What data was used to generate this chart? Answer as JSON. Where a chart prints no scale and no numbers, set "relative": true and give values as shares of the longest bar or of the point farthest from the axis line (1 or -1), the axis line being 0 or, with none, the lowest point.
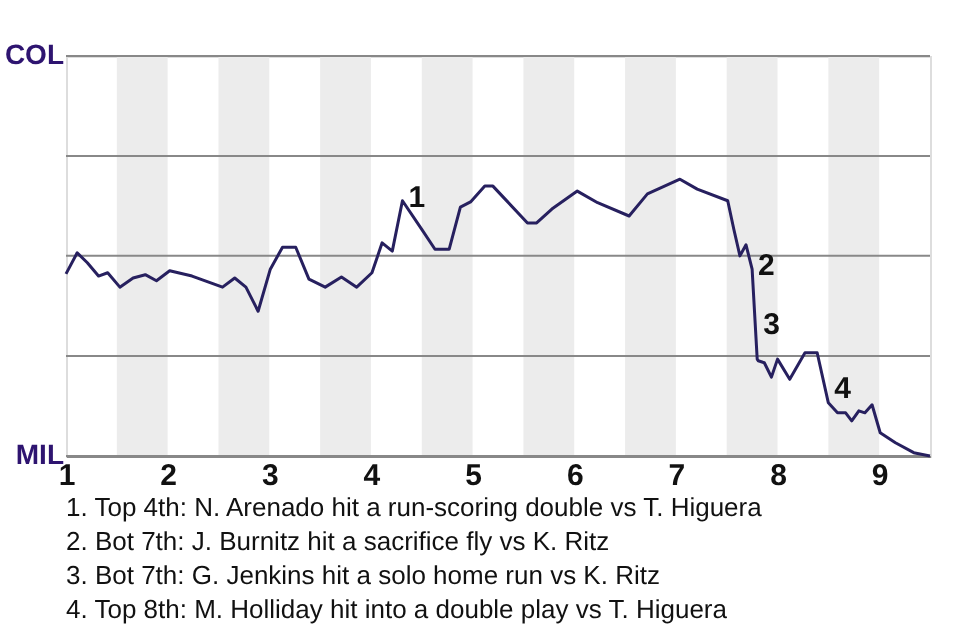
{
  "chart_data": {
    "type": "line",
    "marker": "none",
    "relative": true,
    "x": [
      1.0,
      1.11,
      1.21,
      1.32,
      1.41,
      1.53,
      1.66,
      1.78,
      1.89,
      2.02,
      2.24,
      2.54,
      2.66,
      2.77,
      2.89,
      3.01,
      3.13,
      3.26,
      3.39,
      3.55,
      3.71,
      3.86,
      4.01,
      4.11,
      4.21,
      4.31,
      4.5,
      4.63,
      4.77,
      4.88,
      4.98,
      5.12,
      5.2,
      5.32,
      5.54,
      5.63,
      5.78,
      6.03,
      6.23,
      6.54,
      6.72,
      7.04,
      7.21,
      7.51,
      7.57,
      7.63,
      7.69,
      7.75,
      7.8,
      7.81,
      7.87,
      7.94,
      8.0,
      8.12,
      8.27,
      8.39,
      8.5,
      8.59,
      8.67,
      8.73,
      8.8,
      8.86,
      8.93,
      9.01,
      9.16,
      9.34,
      9.5
    ],
    "series": [
      {
        "color": "#27205f",
        "values": [
          0.658,
          0.734,
          0.698,
          0.65,
          0.662,
          0.61,
          0.643,
          0.655,
          0.633,
          0.669,
          0.65,
          0.61,
          0.643,
          0.61,
          0.523,
          0.675,
          0.754,
          0.754,
          0.639,
          0.61,
          0.647,
          0.61,
          0.662,
          0.77,
          0.74,
          0.922,
          0.819,
          0.747,
          0.747,
          0.899,
          0.918,
          0.975,
          0.975,
          0.928,
          0.842,
          0.842,
          0.892,
          0.957,
          0.915,
          0.867,
          0.947,
          1,
          0.964,
          0.922,
          0.819,
          0.723,
          0.763,
          0.675,
          0.35,
          0.344,
          0.337,
          0.285,
          0.35,
          0.277,
          0.373,
          0.373,
          0.192,
          0.156,
          0.156,
          0.127,
          0.163,
          0.156,
          0.185,
          0.084,
          0.048,
          0.012,
          0
        ]
      }
    ],
    "xlim": [
      1,
      9.5
    ],
    "xticks": [
      1,
      2,
      3,
      4,
      5,
      6,
      7,
      8,
      9
    ],
    "ref_lines": [
      {
        "axis": "y",
        "value": 0,
        "label": "MIL",
        "color": "#888888"
      },
      {
        "axis": "y",
        "value": 0.361,
        "label": null,
        "color": "#888888"
      },
      {
        "axis": "y",
        "value": 0.723,
        "label": null,
        "color": "#888888"
      },
      {
        "axis": "y",
        "value": 1.084,
        "label": null,
        "color": "#888888"
      },
      {
        "axis": "y",
        "value": 1.445,
        "label": "COL",
        "color": "#888888"
      }
    ],
    "bands": [
      {
        "axis": "x",
        "from": 1.5,
        "to": 2,
        "color": "#ececec"
      },
      {
        "axis": "x",
        "from": 2.5,
        "to": 3,
        "color": "#ececec"
      },
      {
        "axis": "x",
        "from": 3.5,
        "to": 4,
        "color": "#ececec"
      },
      {
        "axis": "x",
        "from": 4.5,
        "to": 5,
        "color": "#ececec"
      },
      {
        "axis": "x",
        "from": 5.5,
        "to": 6,
        "color": "#ececec"
      },
      {
        "axis": "x",
        "from": 6.5,
        "to": 7,
        "color": "#ececec"
      },
      {
        "axis": "x",
        "from": 7.5,
        "to": 8,
        "color": "#ececec"
      },
      {
        "axis": "x",
        "from": 8.5,
        "to": 9,
        "color": "#ececec"
      }
    ],
    "annotations": [
      {
        "text": "1",
        "x": 4.31,
        "y": 0.922
      },
      {
        "text": "2",
        "x": 7.75,
        "y": 0.675
      },
      {
        "text": "3",
        "x": 7.8,
        "y": 0.462
      },
      {
        "text": "4",
        "x": 8.5,
        "y": 0.231
      },
      "1. Top 4th: N. Arenado hit a run-scoring double vs T. Higuera",
      "2. Bot 7th: J. Burnitz hit a sacrifice fly vs K. Ritz",
      "3. Bot 7th: G. Jenkins hit a solo home run vs K. Ritz",
      "4. Top 8th: M. Holliday hit into a double play vs T. Higuera"
    ]
  }
}
